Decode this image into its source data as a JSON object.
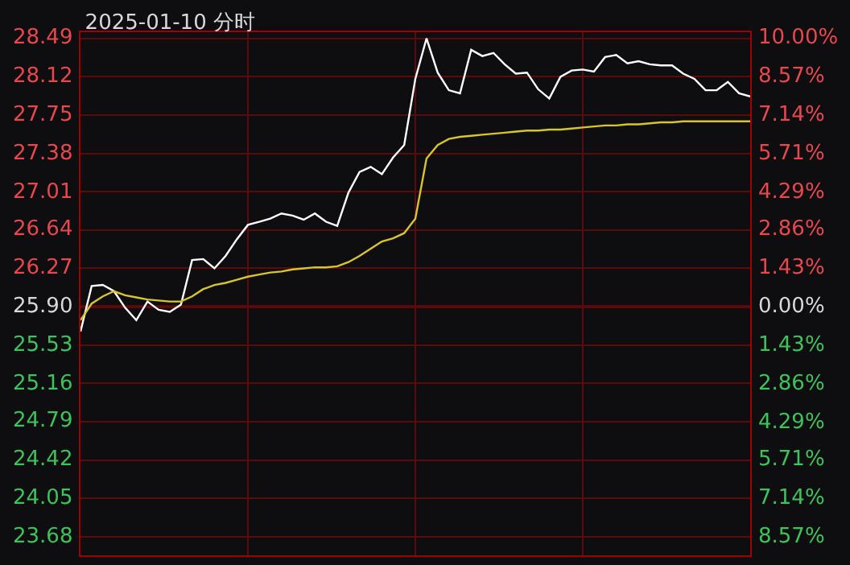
{
  "chart_data": {
    "type": "line",
    "title": "2025-01-10 分时",
    "categories": [
      null,
      null,
      null,
      null,
      null,
      null,
      null,
      null,
      null,
      null,
      null,
      null,
      null,
      null,
      null,
      null,
      null,
      null,
      null,
      null,
      null,
      null,
      null,
      null,
      null,
      null,
      null,
      null,
      null,
      null,
      null,
      null,
      null,
      null,
      null,
      null,
      null,
      null,
      null,
      null,
      null,
      null,
      null,
      null,
      null,
      null,
      null,
      null,
      null,
      null,
      null,
      null,
      null,
      null,
      null,
      null,
      null,
      null,
      null,
      null,
      null
    ],
    "ylim": [
      23.5,
      28.55
    ],
    "yticks": [
      {
        "value": 28.49,
        "label": "28.49"
      },
      {
        "value": 28.12,
        "label": "28.12"
      },
      {
        "value": 27.75,
        "label": "27.75"
      },
      {
        "value": 27.38,
        "label": "27.38"
      },
      {
        "value": 27.01,
        "label": "27.01"
      },
      {
        "value": 26.64,
        "label": "26.64"
      },
      {
        "value": 26.27,
        "label": "26.27"
      },
      {
        "value": 25.9,
        "label": "25.90"
      },
      {
        "value": 25.53,
        "label": "25.53"
      },
      {
        "value": 25.16,
        "label": "25.16"
      },
      {
        "value": 24.79,
        "label": "24.79"
      },
      {
        "value": 24.42,
        "label": "24.42"
      },
      {
        "value": 24.05,
        "label": "24.05"
      },
      {
        "value": 23.68,
        "label": "23.68"
      }
    ],
    "y2lim": [
      -9.27,
      10.23
    ],
    "y2ticks": [
      {
        "value": 10,
        "label": "10.00%"
      },
      {
        "value": 8.57,
        "label": "8.57%"
      },
      {
        "value": 7.14,
        "label": "7.14%"
      },
      {
        "value": 5.71,
        "label": "5.71%"
      },
      {
        "value": 4.29,
        "label": "4.29%"
      },
      {
        "value": 2.86,
        "label": "2.86%"
      },
      {
        "value": 1.43,
        "label": "1.43%"
      },
      {
        "value": 0,
        "label": "0.00%"
      },
      {
        "value": -1.43,
        "label": "1.43%"
      },
      {
        "value": -2.86,
        "label": "2.86%"
      },
      {
        "value": -4.29,
        "label": "4.29%"
      },
      {
        "value": -5.71,
        "label": "5.71%"
      },
      {
        "value": -7.14,
        "label": "7.14%"
      },
      {
        "value": -8.57,
        "label": "8.57%"
      }
    ],
    "ref_lines": [
      {
        "axis": "y",
        "value": 25.9,
        "color": "#a00000"
      }
    ],
    "grid": true,
    "marker": "none",
    "line_style": "solid",
    "tick_labels": "y",
    "series": [
      {
        "color": "#ffffff",
        "values": [
          25.66,
          26.1,
          26.11,
          26.05,
          25.89,
          25.77,
          25.95,
          25.87,
          25.85,
          25.92,
          26.35,
          26.36,
          26.27,
          26.39,
          26.55,
          26.69,
          26.72,
          26.75,
          26.8,
          26.78,
          26.74,
          26.8,
          26.72,
          26.68,
          27.0,
          27.2,
          27.25,
          27.18,
          27.34,
          27.46,
          28.1,
          28.49,
          28.16,
          27.99,
          27.96,
          28.38,
          28.32,
          28.35,
          28.24,
          28.15,
          28.16,
          28.0,
          27.91,
          28.12,
          28.18,
          28.19,
          28.17,
          28.31,
          28.33,
          28.25,
          28.27,
          28.24,
          28.23,
          28.23,
          28.15,
          28.1,
          27.99,
          27.99,
          28.07,
          27.96,
          27.93
        ]
      },
      {
        "color": "#d8c52a",
        "values": [
          25.77,
          25.93,
          26.0,
          26.05,
          26.01,
          25.99,
          25.97,
          25.96,
          25.95,
          25.95,
          26.0,
          26.07,
          26.11,
          26.13,
          26.16,
          26.19,
          26.21,
          26.23,
          26.24,
          26.26,
          26.27,
          26.28,
          26.28,
          26.29,
          26.33,
          26.39,
          26.46,
          26.53,
          26.56,
          26.61,
          26.75,
          27.33,
          27.46,
          27.52,
          27.54,
          27.55,
          27.56,
          27.57,
          27.58,
          27.59,
          27.6,
          27.6,
          27.61,
          27.61,
          27.62,
          27.63,
          27.64,
          27.65,
          27.65,
          27.66,
          27.66,
          27.67,
          27.68,
          27.68,
          27.69,
          27.69,
          27.69,
          27.69,
          27.69,
          27.69,
          27.69
        ]
      }
    ]
  }
}
